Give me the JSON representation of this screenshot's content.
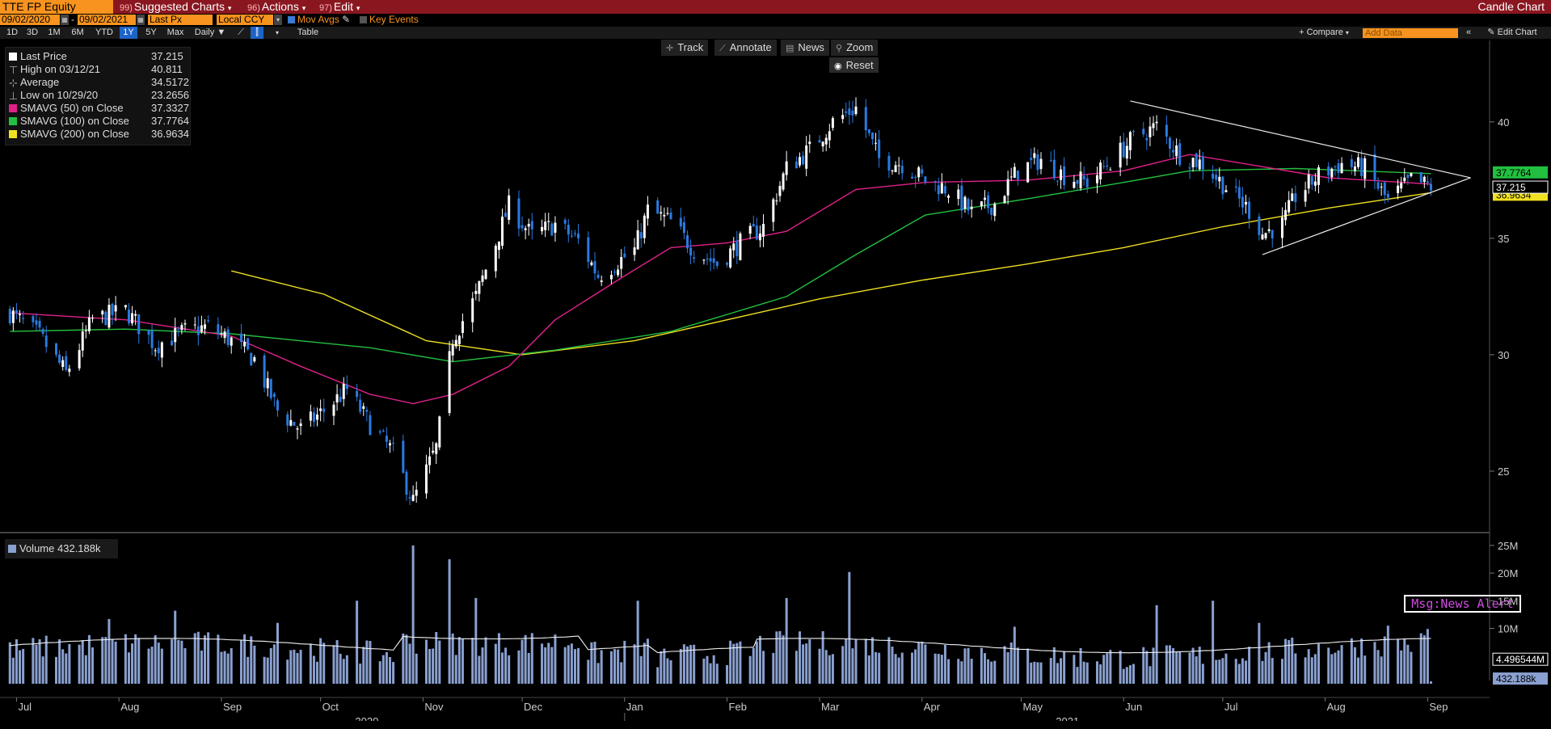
{
  "toolbar": {
    "ticker": "TTE FP Equity",
    "suggested_num": "99)",
    "suggested": "Suggested Charts",
    "actions_num": "96)",
    "actions": "Actions",
    "edit_num": "97)",
    "edit": "Edit",
    "chart_type": "Candle Chart"
  },
  "settings": {
    "start_date": "09/02/2020",
    "end_date": "09/02/2021",
    "field": "Last Px",
    "currency": "Local CCY",
    "mov_avgs": "Mov Avgs",
    "key_events": "Key Events"
  },
  "ranges": [
    "1D",
    "3D",
    "1M",
    "6M",
    "YTD",
    "1Y",
    "5Y",
    "Max"
  ],
  "selected_range": "1Y",
  "periodicity": "Daily",
  "table_label": "Table",
  "compare_label": "+ Compare",
  "add_data_placeholder": "Add Data",
  "edit_chart_label": "Edit Chart",
  "tools": {
    "track": "Track",
    "annotate": "Annotate",
    "news": "News",
    "zoom": "Zoom",
    "reset": "Reset"
  },
  "legend": [
    {
      "label": "Last Price",
      "value": "37.215",
      "color": "#ffffff"
    },
    {
      "label": "High on 03/12/21",
      "value": "40.811",
      "color": ""
    },
    {
      "label": "Average",
      "value": "34.5172",
      "color": ""
    },
    {
      "label": "Low on 10/29/20",
      "value": "23.2656",
      "color": ""
    },
    {
      "label": "SMAVG (50)  on Close",
      "value": "37.3327",
      "color": "#e0218a"
    },
    {
      "label": "SMAVG (100)  on Close",
      "value": "37.7764",
      "color": "#22c040"
    },
    {
      "label": "SMAVG (200)  on Close",
      "value": "36.9634",
      "color": "#f0e020"
    }
  ],
  "volume_legend": {
    "label": "Volume",
    "value": "432.188k"
  },
  "news_alert": "Msg:News Alert",
  "right_labels": {
    "sma100": "37.7764",
    "last": "37.215",
    "sma200": "36.9634",
    "vol_avg": "4.496544M",
    "vol_last": "432.188k"
  },
  "colors": {
    "up": "#ffffff",
    "down": "#2a7ae2",
    "sma50": "#e0218a",
    "sma100": "#22c040",
    "sma200": "#f0e020",
    "volume": "#8aa0d0"
  },
  "chart_data": {
    "type": "candlestick",
    "price_axis": {
      "ticks": [
        25,
        30,
        35,
        40
      ],
      "range": [
        22.5,
        43.5
      ]
    },
    "volume_axis": {
      "ticks": [
        "10M",
        "15M",
        "20M",
        "25M"
      ],
      "range": [
        0,
        26000000
      ]
    },
    "x_axis": {
      "months": [
        "Jul",
        "Aug",
        "Sep",
        "Oct",
        "Nov",
        "Dec",
        "Jan",
        "Feb",
        "Mar",
        "Apr",
        "May",
        "Jun",
        "Jul",
        "Aug",
        "Sep"
      ],
      "years": [
        "2020",
        "2021"
      ]
    },
    "price_path": [
      [
        "2020-06-29",
        31.8
      ],
      [
        "2020-07-08",
        30.8
      ],
      [
        "2020-07-16",
        29.2
      ],
      [
        "2020-07-24",
        31.5
      ],
      [
        "2020-08-03",
        31.9
      ],
      [
        "2020-08-12",
        30.4
      ],
      [
        "2020-08-21",
        31.0
      ],
      [
        "2020-08-28",
        31.2
      ],
      [
        "2020-09-04",
        30.6
      ],
      [
        "2020-09-11",
        29.8
      ],
      [
        "2020-09-18",
        27.6
      ],
      [
        "2020-09-25",
        26.8
      ],
      [
        "2020-10-02",
        27.6
      ],
      [
        "2020-10-09",
        28.5
      ],
      [
        "2020-10-16",
        27.0
      ],
      [
        "2020-10-23",
        25.8
      ],
      [
        "2020-10-29",
        23.7
      ],
      [
        "2020-11-05",
        26.0
      ],
      [
        "2020-11-10",
        30.7
      ],
      [
        "2020-11-17",
        32.5
      ],
      [
        "2020-11-24",
        35.2
      ],
      [
        "2020-11-27",
        36.4
      ],
      [
        "2020-12-04",
        35.1
      ],
      [
        "2020-12-11",
        35.6
      ],
      [
        "2020-12-18",
        34.9
      ],
      [
        "2020-12-24",
        33.4
      ],
      [
        "2021-01-04",
        34.5
      ],
      [
        "2021-01-08",
        36.2
      ],
      [
        "2021-01-15",
        35.7
      ],
      [
        "2021-01-22",
        34.5
      ],
      [
        "2021-01-29",
        33.9
      ],
      [
        "2021-02-05",
        34.8
      ],
      [
        "2021-02-12",
        35.5
      ],
      [
        "2021-02-19",
        38.0
      ],
      [
        "2021-02-26",
        38.8
      ],
      [
        "2021-03-05",
        40.0
      ],
      [
        "2021-03-12",
        40.6
      ],
      [
        "2021-03-19",
        38.4
      ],
      [
        "2021-03-26",
        38.2
      ],
      [
        "2021-04-02",
        37.5
      ],
      [
        "2021-04-09",
        37.1
      ],
      [
        "2021-04-16",
        36.1
      ],
      [
        "2021-04-23",
        36.5
      ],
      [
        "2021-04-30",
        37.9
      ],
      [
        "2021-05-07",
        38.4
      ],
      [
        "2021-05-14",
        37.7
      ],
      [
        "2021-05-21",
        37.4
      ],
      [
        "2021-05-28",
        38.3
      ],
      [
        "2021-06-04",
        39.3
      ],
      [
        "2021-06-11",
        39.8
      ],
      [
        "2021-06-18",
        38.6
      ],
      [
        "2021-06-25",
        38.2
      ],
      [
        "2021-07-02",
        37.2
      ],
      [
        "2021-07-09",
        36.2
      ],
      [
        "2021-07-13",
        35.2
      ],
      [
        "2021-07-19",
        35.6
      ],
      [
        "2021-07-23",
        36.8
      ],
      [
        "2021-07-30",
        37.7
      ],
      [
        "2021-08-06",
        38.2
      ],
      [
        "2021-08-13",
        38.0
      ],
      [
        "2021-08-20",
        36.6
      ],
      [
        "2021-08-27",
        37.5
      ],
      [
        "2021-09-02",
        37.215
      ]
    ],
    "sma50_path": [
      [
        "2020-06-29",
        31.8
      ],
      [
        "2020-08-03",
        31.5
      ],
      [
        "2020-09-04",
        30.8
      ],
      [
        "2020-09-25",
        29.5
      ],
      [
        "2020-10-16",
        28.3
      ],
      [
        "2020-10-29",
        27.9
      ],
      [
        "2020-11-10",
        28.3
      ],
      [
        "2020-11-27",
        29.5
      ],
      [
        "2020-12-11",
        31.5
      ],
      [
        "2020-12-31",
        33.3
      ],
      [
        "2021-01-15",
        34.6
      ],
      [
        "2021-02-01",
        34.8
      ],
      [
        "2021-02-19",
        35.3
      ],
      [
        "2021-03-12",
        37.1
      ],
      [
        "2021-04-02",
        37.4
      ],
      [
        "2021-05-03",
        37.5
      ],
      [
        "2021-06-01",
        37.9
      ],
      [
        "2021-06-21",
        38.6
      ],
      [
        "2021-07-12",
        38.1
      ],
      [
        "2021-08-02",
        37.6
      ],
      [
        "2021-09-02",
        37.33
      ]
    ],
    "sma100_path": [
      [
        "2020-06-29",
        31.0
      ],
      [
        "2020-08-03",
        31.1
      ],
      [
        "2020-09-04",
        30.9
      ],
      [
        "2020-10-16",
        30.3
      ],
      [
        "2020-11-10",
        29.7
      ],
      [
        "2020-12-11",
        30.2
      ],
      [
        "2021-01-15",
        31.0
      ],
      [
        "2021-02-19",
        32.5
      ],
      [
        "2021-03-12",
        34.3
      ],
      [
        "2021-04-02",
        36.0
      ],
      [
        "2021-05-03",
        36.7
      ],
      [
        "2021-06-01",
        37.4
      ],
      [
        "2021-06-21",
        37.9
      ],
      [
        "2021-07-23",
        38.0
      ],
      [
        "2021-09-02",
        37.78
      ]
    ],
    "sma200_path": [
      [
        "2020-09-04",
        33.6
      ],
      [
        "2020-10-02",
        32.6
      ],
      [
        "2020-11-02",
        30.6
      ],
      [
        "2020-12-01",
        30.0
      ],
      [
        "2021-01-04",
        30.6
      ],
      [
        "2021-02-01",
        31.5
      ],
      [
        "2021-03-01",
        32.4
      ],
      [
        "2021-04-01",
        33.2
      ],
      [
        "2021-05-03",
        33.9
      ],
      [
        "2021-06-01",
        34.6
      ],
      [
        "2021-07-01",
        35.5
      ],
      [
        "2021-08-02",
        36.3
      ],
      [
        "2021-09-02",
        36.96
      ]
    ],
    "trendlines": [
      {
        "from": [
          "2021-06-03",
          40.9
        ],
        "to": [
          "2021-09-14",
          37.6
        ]
      },
      {
        "from": [
          "2021-07-13",
          34.3
        ],
        "to": [
          "2021-09-14",
          37.6
        ]
      }
    ],
    "volume_spikes": [
      [
        "2020-07-29",
        11.7
      ],
      [
        "2020-08-18",
        13.2
      ],
      [
        "2020-09-18",
        11.0
      ],
      [
        "2020-10-12",
        15.0
      ],
      [
        "2020-10-29",
        25.0
      ],
      [
        "2020-11-09",
        22.5
      ],
      [
        "2020-11-17",
        15.5
      ],
      [
        "2021-01-05",
        15.0
      ],
      [
        "2021-02-19",
        15.5
      ],
      [
        "2021-03-10",
        20.2
      ],
      [
        "2021-04-29",
        10.3
      ],
      [
        "2021-06-11",
        14.2
      ],
      [
        "2021-06-28",
        15.0
      ],
      [
        "2021-07-12",
        11.0
      ],
      [
        "2021-08-20",
        10.5
      ],
      [
        "2021-09-01",
        9.9
      ],
      [
        "2021-09-02",
        0.43
      ]
    ]
  }
}
